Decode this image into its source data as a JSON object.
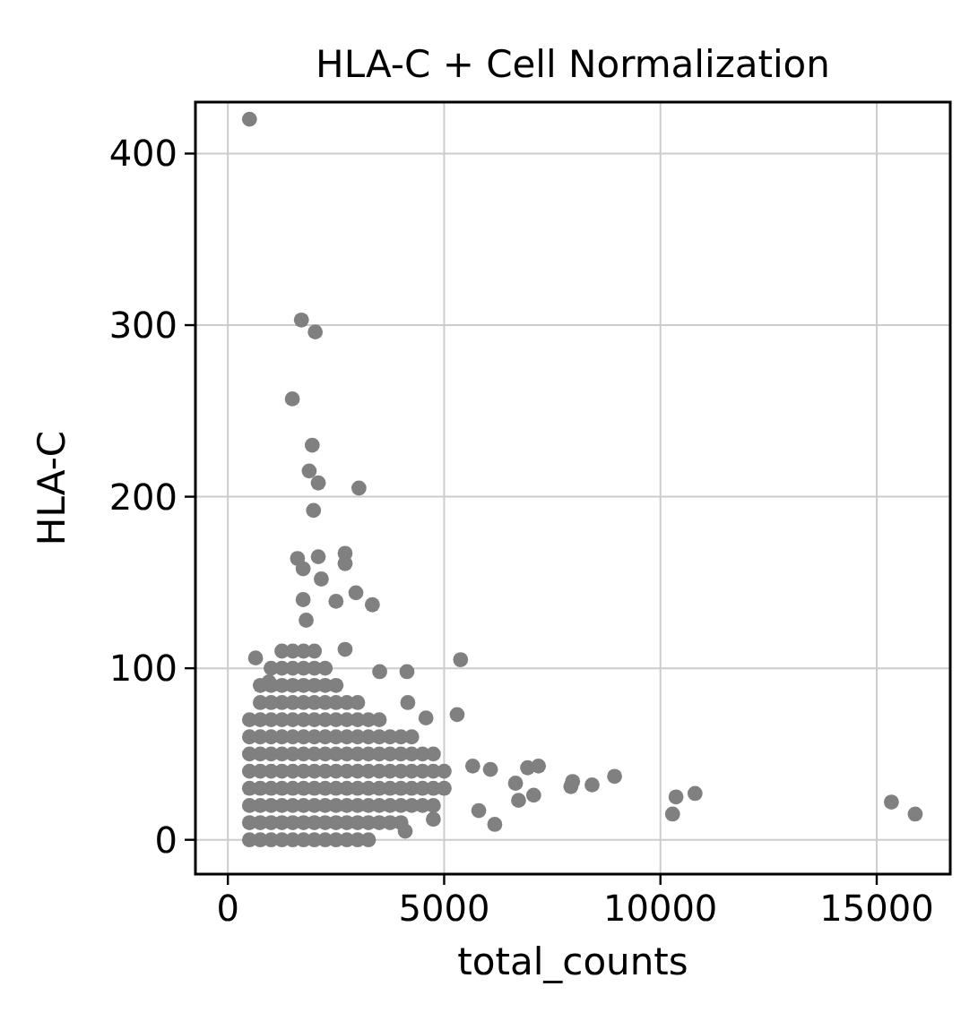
{
  "chart_data": {
    "type": "scatter",
    "title": "HLA-C + Cell Normalization",
    "xlabel": "total_counts",
    "ylabel": "HLA-C",
    "xlim": [
      -750,
      16700
    ],
    "ylim": [
      -20,
      430
    ],
    "xticks": [
      0,
      5000,
      10000,
      15000
    ],
    "yticks": [
      0,
      100,
      200,
      300,
      400
    ],
    "grid": true,
    "marker": "circle",
    "series": [
      {
        "color": "#808080",
        "x": [
          500,
          500,
          500,
          500,
          500,
          500,
          500,
          500,
          750,
          750,
          750,
          750,
          750,
          750,
          750,
          750,
          750,
          750,
          1000,
          1000,
          1000,
          1000,
          1000,
          1000,
          1000,
          1000,
          1000,
          1000,
          1000,
          1250,
          1250,
          1250,
          1250,
          1250,
          1250,
          1250,
          1250,
          1250,
          1250,
          1250,
          1250,
          1500,
          1500,
          1500,
          1500,
          1500,
          1500,
          1500,
          1500,
          1500,
          1500,
          1500,
          1500,
          1750,
          1750,
          1750,
          1750,
          1750,
          1750,
          1750,
          1750,
          1750,
          1750,
          1750,
          1750,
          2000,
          2000,
          2000,
          2000,
          2000,
          2000,
          2000,
          2000,
          2000,
          2000,
          2000,
          2000,
          2250,
          2250,
          2250,
          2250,
          2250,
          2250,
          2250,
          2250,
          2250,
          2250,
          2250,
          2500,
          2500,
          2500,
          2500,
          2500,
          2500,
          2500,
          2500,
          2500,
          2500,
          2750,
          2750,
          2750,
          2750,
          2750,
          2750,
          2750,
          2750,
          2750,
          3000,
          3000,
          3000,
          3000,
          3000,
          3000,
          3000,
          3000,
          3000,
          3250,
          3250,
          3250,
          3250,
          3250,
          3250,
          3250,
          3250,
          3500,
          3500,
          3500,
          3500,
          3500,
          3500,
          3500,
          3750,
          3750,
          3750,
          3750,
          3750,
          3750,
          4000,
          4000,
          4000,
          4000,
          4000,
          4000,
          4250,
          4250,
          4250,
          4250,
          4250,
          4500,
          4500,
          4500,
          4500,
          4750,
          4750,
          4750,
          4750,
          5000,
          5000,
          500,
          1700,
          2020,
          1490,
          1950,
          1880,
          2090,
          3030,
          1980,
          1610,
          2090,
          2710,
          2710,
          1740,
          2160,
          1740,
          2500,
          2960,
          3340,
          1810,
          640,
          5380,
          2710,
          3510,
          4140,
          950,
          5300,
          4580,
          4160,
          5660,
          6070,
          6930,
          7180,
          6650,
          7070,
          6170,
          5800,
          6720,
          4750,
          4100,
          7970,
          7930,
          8420,
          8940,
          10360,
          10280,
          10800,
          15340,
          15890
        ],
        "values": [
          0,
          10,
          20,
          30,
          40,
          50,
          60,
          70,
          0,
          10,
          20,
          30,
          40,
          50,
          60,
          70,
          80,
          90,
          0,
          10,
          20,
          30,
          40,
          50,
          60,
          70,
          80,
          90,
          100,
          0,
          10,
          20,
          30,
          40,
          50,
          60,
          70,
          80,
          90,
          100,
          110,
          0,
          10,
          20,
          30,
          40,
          50,
          60,
          70,
          80,
          90,
          100,
          110,
          0,
          10,
          20,
          30,
          40,
          50,
          60,
          70,
          80,
          90,
          100,
          110,
          0,
          10,
          20,
          30,
          40,
          50,
          60,
          70,
          80,
          90,
          100,
          110,
          0,
          10,
          20,
          30,
          40,
          50,
          60,
          70,
          80,
          90,
          100,
          0,
          10,
          20,
          30,
          40,
          50,
          60,
          70,
          80,
          90,
          0,
          10,
          20,
          30,
          40,
          50,
          60,
          70,
          80,
          0,
          10,
          20,
          30,
          40,
          50,
          60,
          70,
          80,
          0,
          10,
          20,
          30,
          40,
          50,
          60,
          70,
          10,
          20,
          30,
          40,
          50,
          60,
          70,
          10,
          20,
          30,
          40,
          50,
          60,
          10,
          20,
          30,
          40,
          50,
          60,
          20,
          30,
          40,
          50,
          60,
          20,
          30,
          40,
          50,
          20,
          30,
          40,
          50,
          30,
          40,
          420,
          303,
          296,
          257,
          230,
          215,
          208,
          205,
          192,
          164,
          165,
          167,
          161,
          158,
          152,
          140,
          139,
          144,
          137,
          128,
          106,
          105,
          111,
          98,
          98,
          92,
          73,
          71,
          80,
          43,
          41,
          42,
          43,
          33,
          26,
          9,
          17,
          23,
          12,
          5,
          34,
          31,
          32,
          37,
          25,
          15,
          27,
          22,
          15
        ]
      }
    ]
  }
}
